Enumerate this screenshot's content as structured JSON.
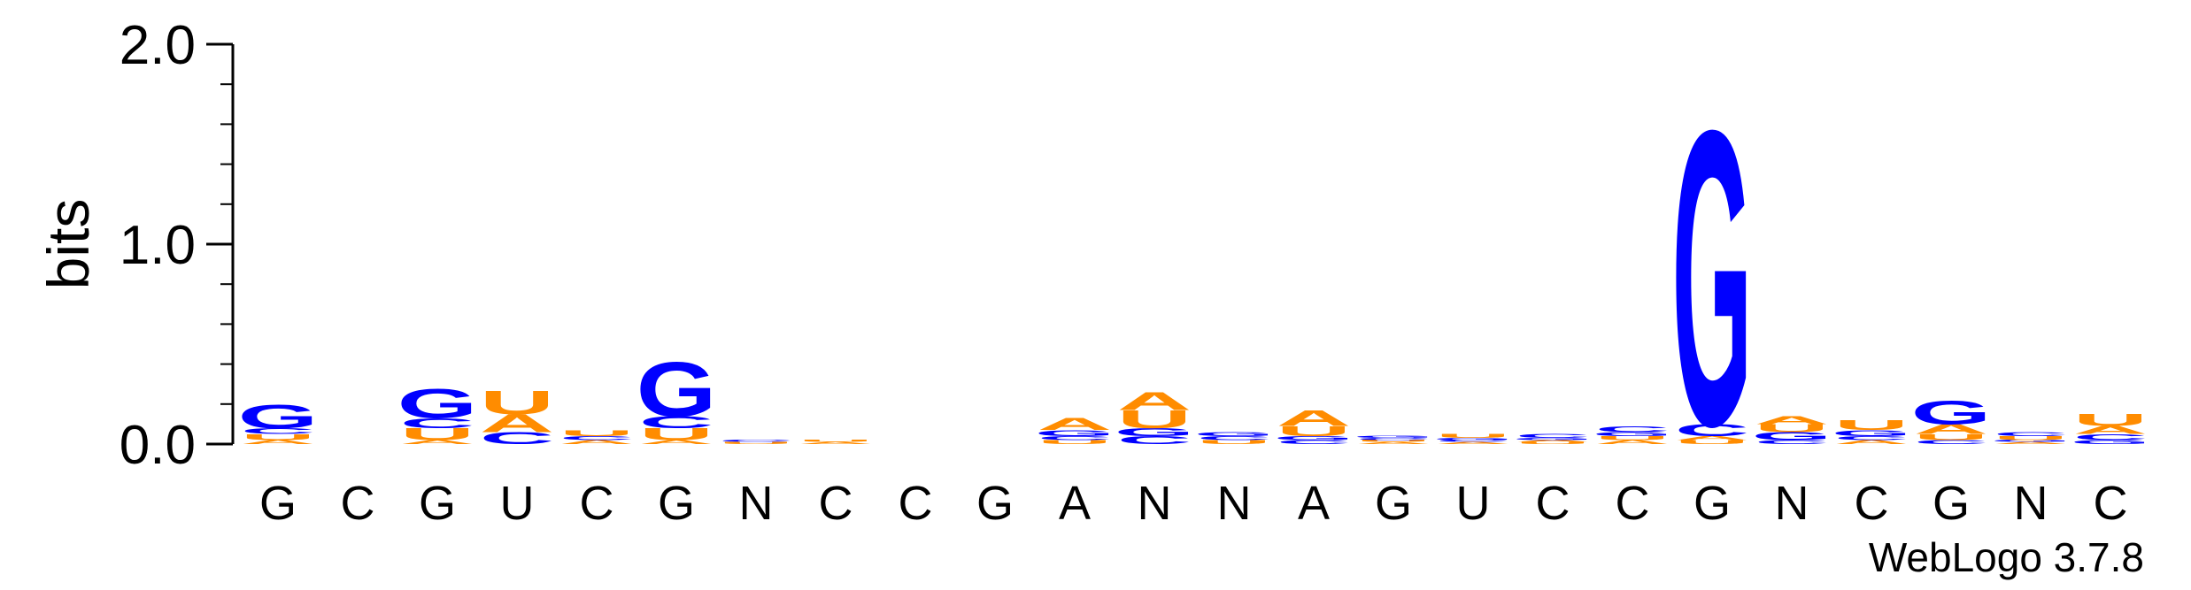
{
  "chart_data": {
    "type": "sequence-logo",
    "ylabel": "bits",
    "ylim": [
      0,
      2
    ],
    "yticks": [
      {
        "value": 0,
        "label": "0.0"
      },
      {
        "value": 1,
        "label": "1.0"
      },
      {
        "value": 2,
        "label": "2.0"
      }
    ],
    "colors": {
      "A": "#ff8c00",
      "U": "#ff8c00",
      "G": "#0000ff",
      "C": "#0000ff"
    },
    "positions": [
      {
        "label": "G",
        "stack": [
          {
            "letter": "A",
            "height": 0.02
          },
          {
            "letter": "U",
            "height": 0.03
          },
          {
            "letter": "C",
            "height": 0.03
          },
          {
            "letter": "G",
            "height": 0.12
          }
        ]
      },
      {
        "label": "C",
        "stack": []
      },
      {
        "label": "G",
        "stack": [
          {
            "letter": "A",
            "height": 0.02
          },
          {
            "letter": "U",
            "height": 0.06
          },
          {
            "letter": "C",
            "height": 0.05
          },
          {
            "letter": "G",
            "height": 0.15
          }
        ]
      },
      {
        "label": "U",
        "stack": [
          {
            "letter": "C",
            "height": 0.06
          },
          {
            "letter": "A",
            "height": 0.09
          },
          {
            "letter": "U",
            "height": 0.12
          }
        ]
      },
      {
        "label": "C",
        "stack": [
          {
            "letter": "A",
            "height": 0.02
          },
          {
            "letter": "C",
            "height": 0.02
          },
          {
            "letter": "U",
            "height": 0.03
          }
        ]
      },
      {
        "label": "G",
        "stack": [
          {
            "letter": "A",
            "height": 0.02
          },
          {
            "letter": "U",
            "height": 0.06
          },
          {
            "letter": "C",
            "height": 0.06
          },
          {
            "letter": "G",
            "height": 0.28
          }
        ]
      },
      {
        "label": "N",
        "stack": [
          {
            "letter": "U",
            "height": 0.01
          },
          {
            "letter": "C",
            "height": 0.01
          }
        ]
      },
      {
        "label": "C",
        "stack": [
          {
            "letter": "A",
            "height": 0.01
          },
          {
            "letter": "U",
            "height": 0.01
          }
        ]
      },
      {
        "label": "C",
        "stack": []
      },
      {
        "label": "G",
        "stack": []
      },
      {
        "label": "A",
        "stack": [
          {
            "letter": "U",
            "height": 0.02
          },
          {
            "letter": "C",
            "height": 0.02
          },
          {
            "letter": "G",
            "height": 0.03
          },
          {
            "letter": "A",
            "height": 0.06
          }
        ]
      },
      {
        "label": "N",
        "stack": [
          {
            "letter": "C",
            "height": 0.04
          },
          {
            "letter": "G",
            "height": 0.04
          },
          {
            "letter": "U",
            "height": 0.09
          },
          {
            "letter": "A",
            "height": 0.09
          }
        ]
      },
      {
        "label": "N",
        "stack": [
          {
            "letter": "U",
            "height": 0.02
          },
          {
            "letter": "C",
            "height": 0.02
          },
          {
            "letter": "G",
            "height": 0.02
          }
        ]
      },
      {
        "label": "A",
        "stack": [
          {
            "letter": "C",
            "height": 0.02
          },
          {
            "letter": "G",
            "height": 0.02
          },
          {
            "letter": "U",
            "height": 0.05
          },
          {
            "letter": "A",
            "height": 0.08
          }
        ]
      },
      {
        "label": "G",
        "stack": [
          {
            "letter": "A",
            "height": 0.01
          },
          {
            "letter": "U",
            "height": 0.01
          },
          {
            "letter": "C",
            "height": 0.01
          },
          {
            "letter": "G",
            "height": 0.01
          }
        ]
      },
      {
        "label": "U",
        "stack": [
          {
            "letter": "A",
            "height": 0.01
          },
          {
            "letter": "C",
            "height": 0.01
          },
          {
            "letter": "G",
            "height": 0.01
          },
          {
            "letter": "U",
            "height": 0.02
          }
        ]
      },
      {
        "label": "C",
        "stack": [
          {
            "letter": "U",
            "height": 0.01
          },
          {
            "letter": "A",
            "height": 0.01
          },
          {
            "letter": "G",
            "height": 0.01
          },
          {
            "letter": "C",
            "height": 0.02
          }
        ]
      },
      {
        "label": "C",
        "stack": [
          {
            "letter": "A",
            "height": 0.02
          },
          {
            "letter": "U",
            "height": 0.02
          },
          {
            "letter": "G",
            "height": 0.02
          },
          {
            "letter": "C",
            "height": 0.03
          }
        ]
      },
      {
        "label": "G",
        "stack": [
          {
            "letter": "U",
            "height": 0.02
          },
          {
            "letter": "A",
            "height": 0.02
          },
          {
            "letter": "C",
            "height": 0.06
          },
          {
            "letter": "G",
            "height": 1.51
          }
        ]
      },
      {
        "label": "N",
        "stack": [
          {
            "letter": "C",
            "height": 0.02
          },
          {
            "letter": "G",
            "height": 0.04
          },
          {
            "letter": "U",
            "height": 0.04
          },
          {
            "letter": "A",
            "height": 0.04
          }
        ]
      },
      {
        "label": "C",
        "stack": [
          {
            "letter": "A",
            "height": 0.02
          },
          {
            "letter": "C",
            "height": 0.02
          },
          {
            "letter": "G",
            "height": 0.03
          },
          {
            "letter": "U",
            "height": 0.05
          }
        ]
      },
      {
        "label": "G",
        "stack": [
          {
            "letter": "C",
            "height": 0.02
          },
          {
            "letter": "U",
            "height": 0.03
          },
          {
            "letter": "A",
            "height": 0.05
          },
          {
            "letter": "G",
            "height": 0.12
          }
        ]
      },
      {
        "label": "N",
        "stack": [
          {
            "letter": "A",
            "height": 0.01
          },
          {
            "letter": "G",
            "height": 0.01
          },
          {
            "letter": "U",
            "height": 0.02
          },
          {
            "letter": "C",
            "height": 0.02
          }
        ]
      },
      {
        "label": "C",
        "stack": [
          {
            "letter": "G",
            "height": 0.02
          },
          {
            "letter": "C",
            "height": 0.03
          },
          {
            "letter": "A",
            "height": 0.04
          },
          {
            "letter": "U",
            "height": 0.06
          }
        ]
      }
    ]
  },
  "footer": {
    "credit": "WebLogo 3.7.8"
  }
}
